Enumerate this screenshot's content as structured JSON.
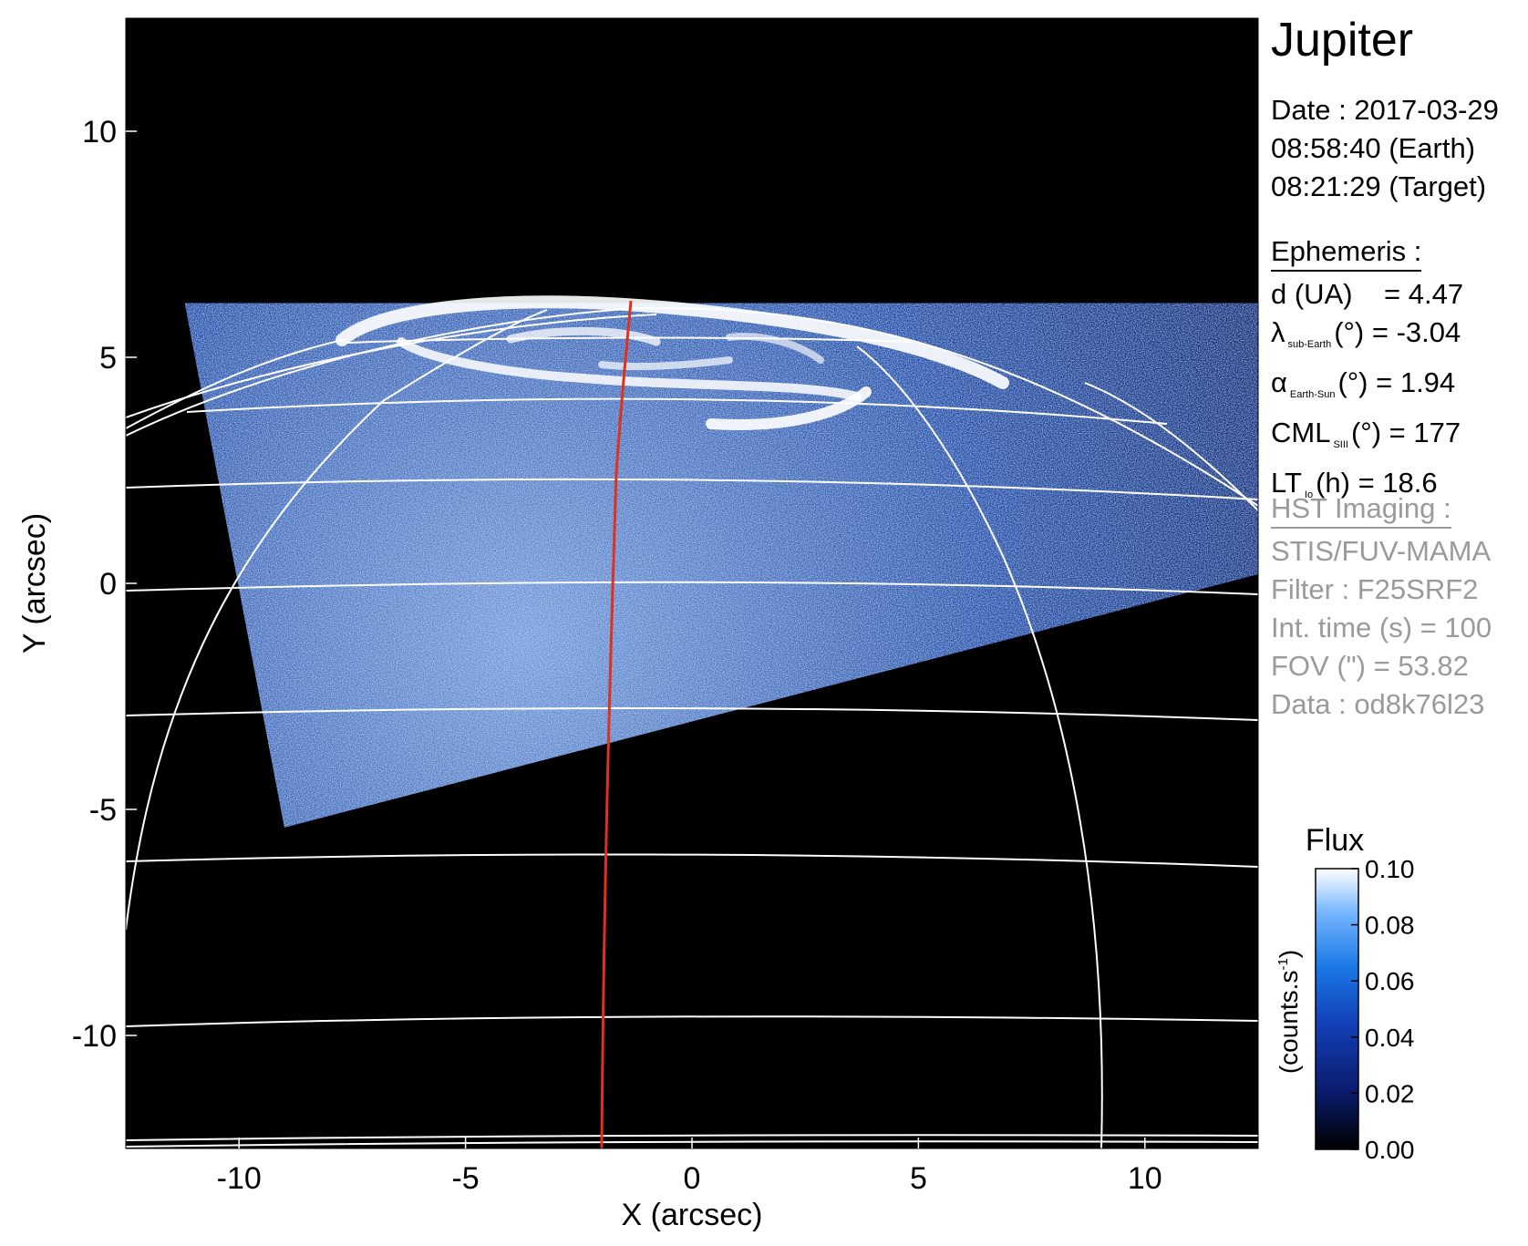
{
  "panel": {
    "title": "Jupiter",
    "date_line": "Date : 2017-03-29",
    "earth_time": "08:58:40 (Earth)",
    "target_time": "08:21:29 (Target)",
    "ephemeris": {
      "header": "Ephemeris :",
      "d_label": "d (UA)",
      "d_value": "= 4.47",
      "lat_symbol": "λ",
      "lat_sub": "sub-Earth",
      "lat_value": "(°) = -3.04",
      "phase_symbol": "α",
      "phase_sub": "Earth-Sun",
      "phase_value": "(°) = 1.94",
      "cml_symbol": "CML",
      "cml_sub": "SIII",
      "cml_value": "(°) = 177",
      "lt_symbol": "LT",
      "lt_sub": "Io",
      "lt_value": "(h) = 18.6"
    },
    "hst": {
      "header": "HST Imaging :",
      "instrument": "STIS/FUV-MAMA",
      "filter": "Filter : F25SRF2",
      "int_time": "Int. time (s) = 100",
      "fov": "FOV (\") = 53.82",
      "data": "Data : od8k76l23"
    }
  },
  "chart_data": {
    "type": "heatmap",
    "xlabel": "X (arcsec)",
    "ylabel": "Y (arcsec)",
    "xlim": [
      -12.5,
      12.5
    ],
    "ylim": [
      -12.5,
      12.5
    ],
    "xticks": [
      "-10",
      "-5",
      "0",
      "5",
      "10"
    ],
    "yticks": [
      "-10",
      "-5",
      "0",
      "5",
      "10"
    ],
    "xtick_values": [
      -10,
      -5,
      0,
      5,
      10
    ],
    "ytick_values": [
      -10,
      -5,
      0,
      5,
      10
    ],
    "colorbar": {
      "title": "Flux",
      "label": "(counts.s",
      "label_sup": "-1",
      "label_end": ")",
      "range": [
        0.0,
        0.1
      ],
      "ticks": [
        "0.00",
        "0.02",
        "0.04",
        "0.06",
        "0.08",
        "0.10"
      ],
      "tick_values": [
        0.0,
        0.02,
        0.04,
        0.06,
        0.08,
        0.1
      ],
      "colors": [
        "#000000",
        "#0a1a6a",
        "#1240b8",
        "#1a78e6",
        "#7ab8ff",
        "#ffffff"
      ]
    },
    "detector_footprint_arcsec": [
      [
        -11.2,
        6.2
      ],
      [
        12.5,
        6.2
      ],
      [
        12.5,
        0.2
      ],
      [
        -9.0,
        -5.4
      ]
    ],
    "auroral_oval_center_arcsec": [
      1.0,
      5.3
    ],
    "background_color": "#000000",
    "grid_color": "#ffffff",
    "meridian_color": "#e0301e"
  }
}
